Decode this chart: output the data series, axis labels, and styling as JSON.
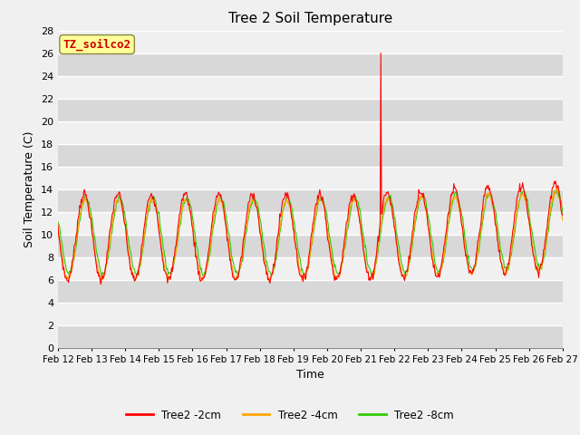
{
  "title": "Tree 2 Soil Temperature",
  "xlabel": "Time",
  "ylabel": "Soil Temperature (C)",
  "ylim": [
    0,
    28
  ],
  "yticks": [
    0,
    2,
    4,
    6,
    8,
    10,
    12,
    14,
    16,
    18,
    20,
    22,
    24,
    26,
    28
  ],
  "annotation_label": "TZ_soilco2",
  "annotation_color": "#cc0000",
  "annotation_bg": "#ffff99",
  "line_colors": {
    "2cm": "#ff0000",
    "4cm": "#ffa500",
    "8cm": "#33cc00"
  },
  "legend_labels": [
    "Tree2 -2cm",
    "Tree2 -4cm",
    "Tree2 -8cm"
  ],
  "x_tick_labels": [
    "Feb 12",
    "Feb 13",
    "Feb 14",
    "Feb 15",
    "Feb 16",
    "Feb 17",
    "Feb 18",
    "Feb 19",
    "Feb 20",
    "Feb 21",
    "Feb 22",
    "Feb 23",
    "Feb 24",
    "Feb 25",
    "Feb 26",
    "Feb 27"
  ],
  "bg_dark": "#d8d8d8",
  "bg_light": "#f0f0f0",
  "grid_color": "#ffffff",
  "title_fontsize": 11,
  "figsize": [
    6.4,
    4.8
  ],
  "dpi": 100
}
